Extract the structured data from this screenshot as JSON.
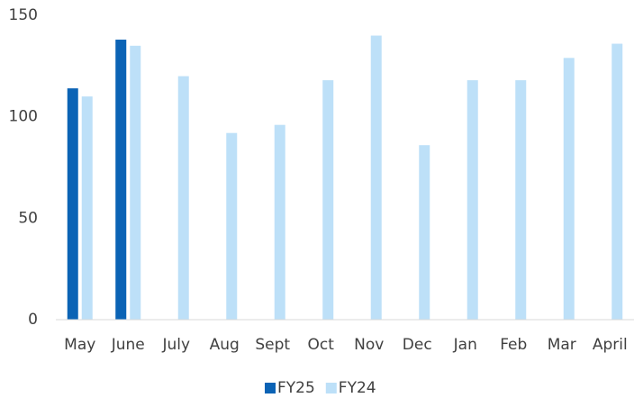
{
  "chart_data": {
    "type": "bar",
    "categories": [
      "May",
      "June",
      "July",
      "Aug",
      "Sept",
      "Oct",
      "Nov",
      "Dec",
      "Jan",
      "Feb",
      "Mar",
      "April"
    ],
    "series": [
      {
        "name": "FY25",
        "color": "#0b63b5",
        "values": [
          114,
          138,
          null,
          null,
          null,
          null,
          null,
          null,
          null,
          null,
          null,
          null
        ]
      },
      {
        "name": "FY24",
        "color": "#bde0f8",
        "values": [
          110,
          135,
          120,
          92,
          96,
          118,
          140,
          86,
          118,
          118,
          129,
          136
        ]
      }
    ],
    "ylim": [
      0,
      150
    ],
    "yticks": [
      0,
      50,
      100,
      150
    ],
    "grid": false,
    "legend": "bottom"
  }
}
